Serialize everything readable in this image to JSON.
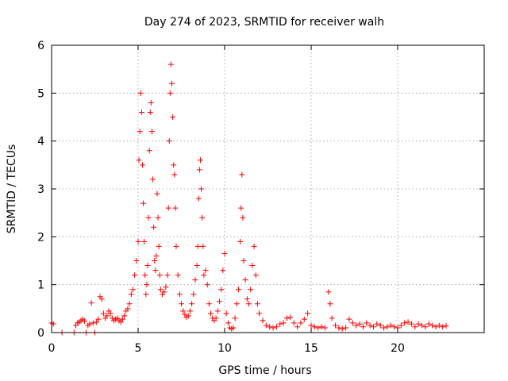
{
  "chart_data": {
    "type": "scatter",
    "title": "Day 274 of 2023, SRMTID for receiver walh",
    "xlabel": "GPS time / hours",
    "ylabel": "SRMTID / TECUs",
    "xlim": [
      0,
      25
    ],
    "ylim": [
      0,
      6
    ],
    "xticks": [
      0,
      5,
      10,
      15,
      20
    ],
    "yticks": [
      0,
      1,
      2,
      3,
      4,
      5,
      6
    ],
    "grid": true,
    "marker": "+",
    "colors": {
      "series": "#ff0000",
      "grid": "#9a9a9a",
      "axis": "#000000"
    },
    "series": [
      {
        "name": "walh",
        "points": [
          [
            0.0,
            0.2
          ],
          [
            0.1,
            0.18
          ],
          [
            0.6,
            0.0
          ],
          [
            1.3,
            0.0
          ],
          [
            1.4,
            0.15
          ],
          [
            1.5,
            0.2
          ],
          [
            1.6,
            0.22
          ],
          [
            1.7,
            0.25
          ],
          [
            1.8,
            0.28
          ],
          [
            1.9,
            0.24
          ],
          [
            2.0,
            0.0
          ],
          [
            2.1,
            0.15
          ],
          [
            2.2,
            0.18
          ],
          [
            2.3,
            0.62
          ],
          [
            2.4,
            0.2
          ],
          [
            2.5,
            0.0
          ],
          [
            2.6,
            0.22
          ],
          [
            2.7,
            0.28
          ],
          [
            2.8,
            0.75
          ],
          [
            2.9,
            0.7
          ],
          [
            3.0,
            0.4
          ],
          [
            3.1,
            0.3
          ],
          [
            3.2,
            0.35
          ],
          [
            3.3,
            0.45
          ],
          [
            3.4,
            0.4
          ],
          [
            3.5,
            0.3
          ],
          [
            3.6,
            0.25
          ],
          [
            3.7,
            0.28
          ],
          [
            3.8,
            0.3
          ],
          [
            3.9,
            0.25
          ],
          [
            4.0,
            0.22
          ],
          [
            4.1,
            0.28
          ],
          [
            4.2,
            0.35
          ],
          [
            4.3,
            0.45
          ],
          [
            4.4,
            0.5
          ],
          [
            4.5,
            0.6
          ],
          [
            4.6,
            0.8
          ],
          [
            4.7,
            0.9
          ],
          [
            4.8,
            1.2
          ],
          [
            4.9,
            1.5
          ],
          [
            5.0,
            1.9
          ],
          [
            5.05,
            3.6
          ],
          [
            5.1,
            4.2
          ],
          [
            5.15,
            5.0
          ],
          [
            5.2,
            4.6
          ],
          [
            5.25,
            3.5
          ],
          [
            5.3,
            2.7
          ],
          [
            5.35,
            1.9
          ],
          [
            5.4,
            1.2
          ],
          [
            5.45,
            0.8
          ],
          [
            5.5,
            1.0
          ],
          [
            5.55,
            1.4
          ],
          [
            5.6,
            2.4
          ],
          [
            5.65,
            3.8
          ],
          [
            5.7,
            4.6
          ],
          [
            5.75,
            4.8
          ],
          [
            5.8,
            4.2
          ],
          [
            5.85,
            3.2
          ],
          [
            5.9,
            2.2
          ],
          [
            5.95,
            1.5
          ],
          [
            6.0,
            1.3
          ],
          [
            6.05,
            1.6
          ],
          [
            6.1,
            2.9
          ],
          [
            6.15,
            2.4
          ],
          [
            6.2,
            1.8
          ],
          [
            6.25,
            1.2
          ],
          [
            6.3,
            0.9
          ],
          [
            6.4,
            0.8
          ],
          [
            6.5,
            0.85
          ],
          [
            6.6,
            0.95
          ],
          [
            6.7,
            1.2
          ],
          [
            6.75,
            2.6
          ],
          [
            6.8,
            4.0
          ],
          [
            6.85,
            5.0
          ],
          [
            6.9,
            5.6
          ],
          [
            6.95,
            5.2
          ],
          [
            7.0,
            4.5
          ],
          [
            7.05,
            3.5
          ],
          [
            7.1,
            3.3
          ],
          [
            7.15,
            2.6
          ],
          [
            7.2,
            1.8
          ],
          [
            7.3,
            1.2
          ],
          [
            7.4,
            0.8
          ],
          [
            7.5,
            0.6
          ],
          [
            7.6,
            0.45
          ],
          [
            7.7,
            0.38
          ],
          [
            7.8,
            0.32
          ],
          [
            7.9,
            0.35
          ],
          [
            8.0,
            0.45
          ],
          [
            8.1,
            0.6
          ],
          [
            8.2,
            0.8
          ],
          [
            8.3,
            1.1
          ],
          [
            8.4,
            1.4
          ],
          [
            8.45,
            1.8
          ],
          [
            8.5,
            2.8
          ],
          [
            8.55,
            3.4
          ],
          [
            8.6,
            3.6
          ],
          [
            8.65,
            3.0
          ],
          [
            8.7,
            2.4
          ],
          [
            8.75,
            1.8
          ],
          [
            8.8,
            1.2
          ],
          [
            8.9,
            1.3
          ],
          [
            9.0,
            1.0
          ],
          [
            9.1,
            0.6
          ],
          [
            9.2,
            0.4
          ],
          [
            9.3,
            0.3
          ],
          [
            9.4,
            0.25
          ],
          [
            9.5,
            0.3
          ],
          [
            9.6,
            0.45
          ],
          [
            9.7,
            0.65
          ],
          [
            9.8,
            0.9
          ],
          [
            9.9,
            1.3
          ],
          [
            10.0,
            1.65
          ],
          [
            10.1,
            0.4
          ],
          [
            10.2,
            0.2
          ],
          [
            10.3,
            0.1
          ],
          [
            10.4,
            0.08
          ],
          [
            10.5,
            0.1
          ],
          [
            10.6,
            0.3
          ],
          [
            10.7,
            0.6
          ],
          [
            10.8,
            0.9
          ],
          [
            10.9,
            1.9
          ],
          [
            10.95,
            2.6
          ],
          [
            11.0,
            3.3
          ],
          [
            11.05,
            2.4
          ],
          [
            11.1,
            1.5
          ],
          [
            11.2,
            1.1
          ],
          [
            11.3,
            0.7
          ],
          [
            11.4,
            0.6
          ],
          [
            11.5,
            0.9
          ],
          [
            11.6,
            1.4
          ],
          [
            11.7,
            1.8
          ],
          [
            11.8,
            1.2
          ],
          [
            11.9,
            0.6
          ],
          [
            12.0,
            0.4
          ],
          [
            12.2,
            0.25
          ],
          [
            12.4,
            0.15
          ],
          [
            12.6,
            0.12
          ],
          [
            12.8,
            0.1
          ],
          [
            13.0,
            0.12
          ],
          [
            13.2,
            0.18
          ],
          [
            13.4,
            0.2
          ],
          [
            13.6,
            0.3
          ],
          [
            13.8,
            0.32
          ],
          [
            14.0,
            0.2
          ],
          [
            14.2,
            0.12
          ],
          [
            14.4,
            0.2
          ],
          [
            14.6,
            0.28
          ],
          [
            14.8,
            0.4
          ],
          [
            15.0,
            0.15
          ],
          [
            15.2,
            0.12
          ],
          [
            15.4,
            0.1
          ],
          [
            15.6,
            0.12
          ],
          [
            15.8,
            0.1
          ],
          [
            16.0,
            0.85
          ],
          [
            16.1,
            0.6
          ],
          [
            16.2,
            0.3
          ],
          [
            16.4,
            0.15
          ],
          [
            16.6,
            0.1
          ],
          [
            16.8,
            0.08
          ],
          [
            17.0,
            0.1
          ],
          [
            17.2,
            0.28
          ],
          [
            17.4,
            0.2
          ],
          [
            17.6,
            0.15
          ],
          [
            17.8,
            0.18
          ],
          [
            18.0,
            0.12
          ],
          [
            18.2,
            0.2
          ],
          [
            18.4,
            0.15
          ],
          [
            18.6,
            0.12
          ],
          [
            18.8,
            0.18
          ],
          [
            19.0,
            0.15
          ],
          [
            19.2,
            0.1
          ],
          [
            19.4,
            0.12
          ],
          [
            19.6,
            0.15
          ],
          [
            19.8,
            0.12
          ],
          [
            20.0,
            0.1
          ],
          [
            20.2,
            0.15
          ],
          [
            20.4,
            0.2
          ],
          [
            20.6,
            0.22
          ],
          [
            20.8,
            0.18
          ],
          [
            21.0,
            0.12
          ],
          [
            21.2,
            0.18
          ],
          [
            21.4,
            0.15
          ],
          [
            21.6,
            0.12
          ],
          [
            21.8,
            0.18
          ],
          [
            22.0,
            0.15
          ],
          [
            22.2,
            0.12
          ],
          [
            22.4,
            0.15
          ],
          [
            22.6,
            0.12
          ],
          [
            22.8,
            0.14
          ]
        ]
      }
    ]
  }
}
